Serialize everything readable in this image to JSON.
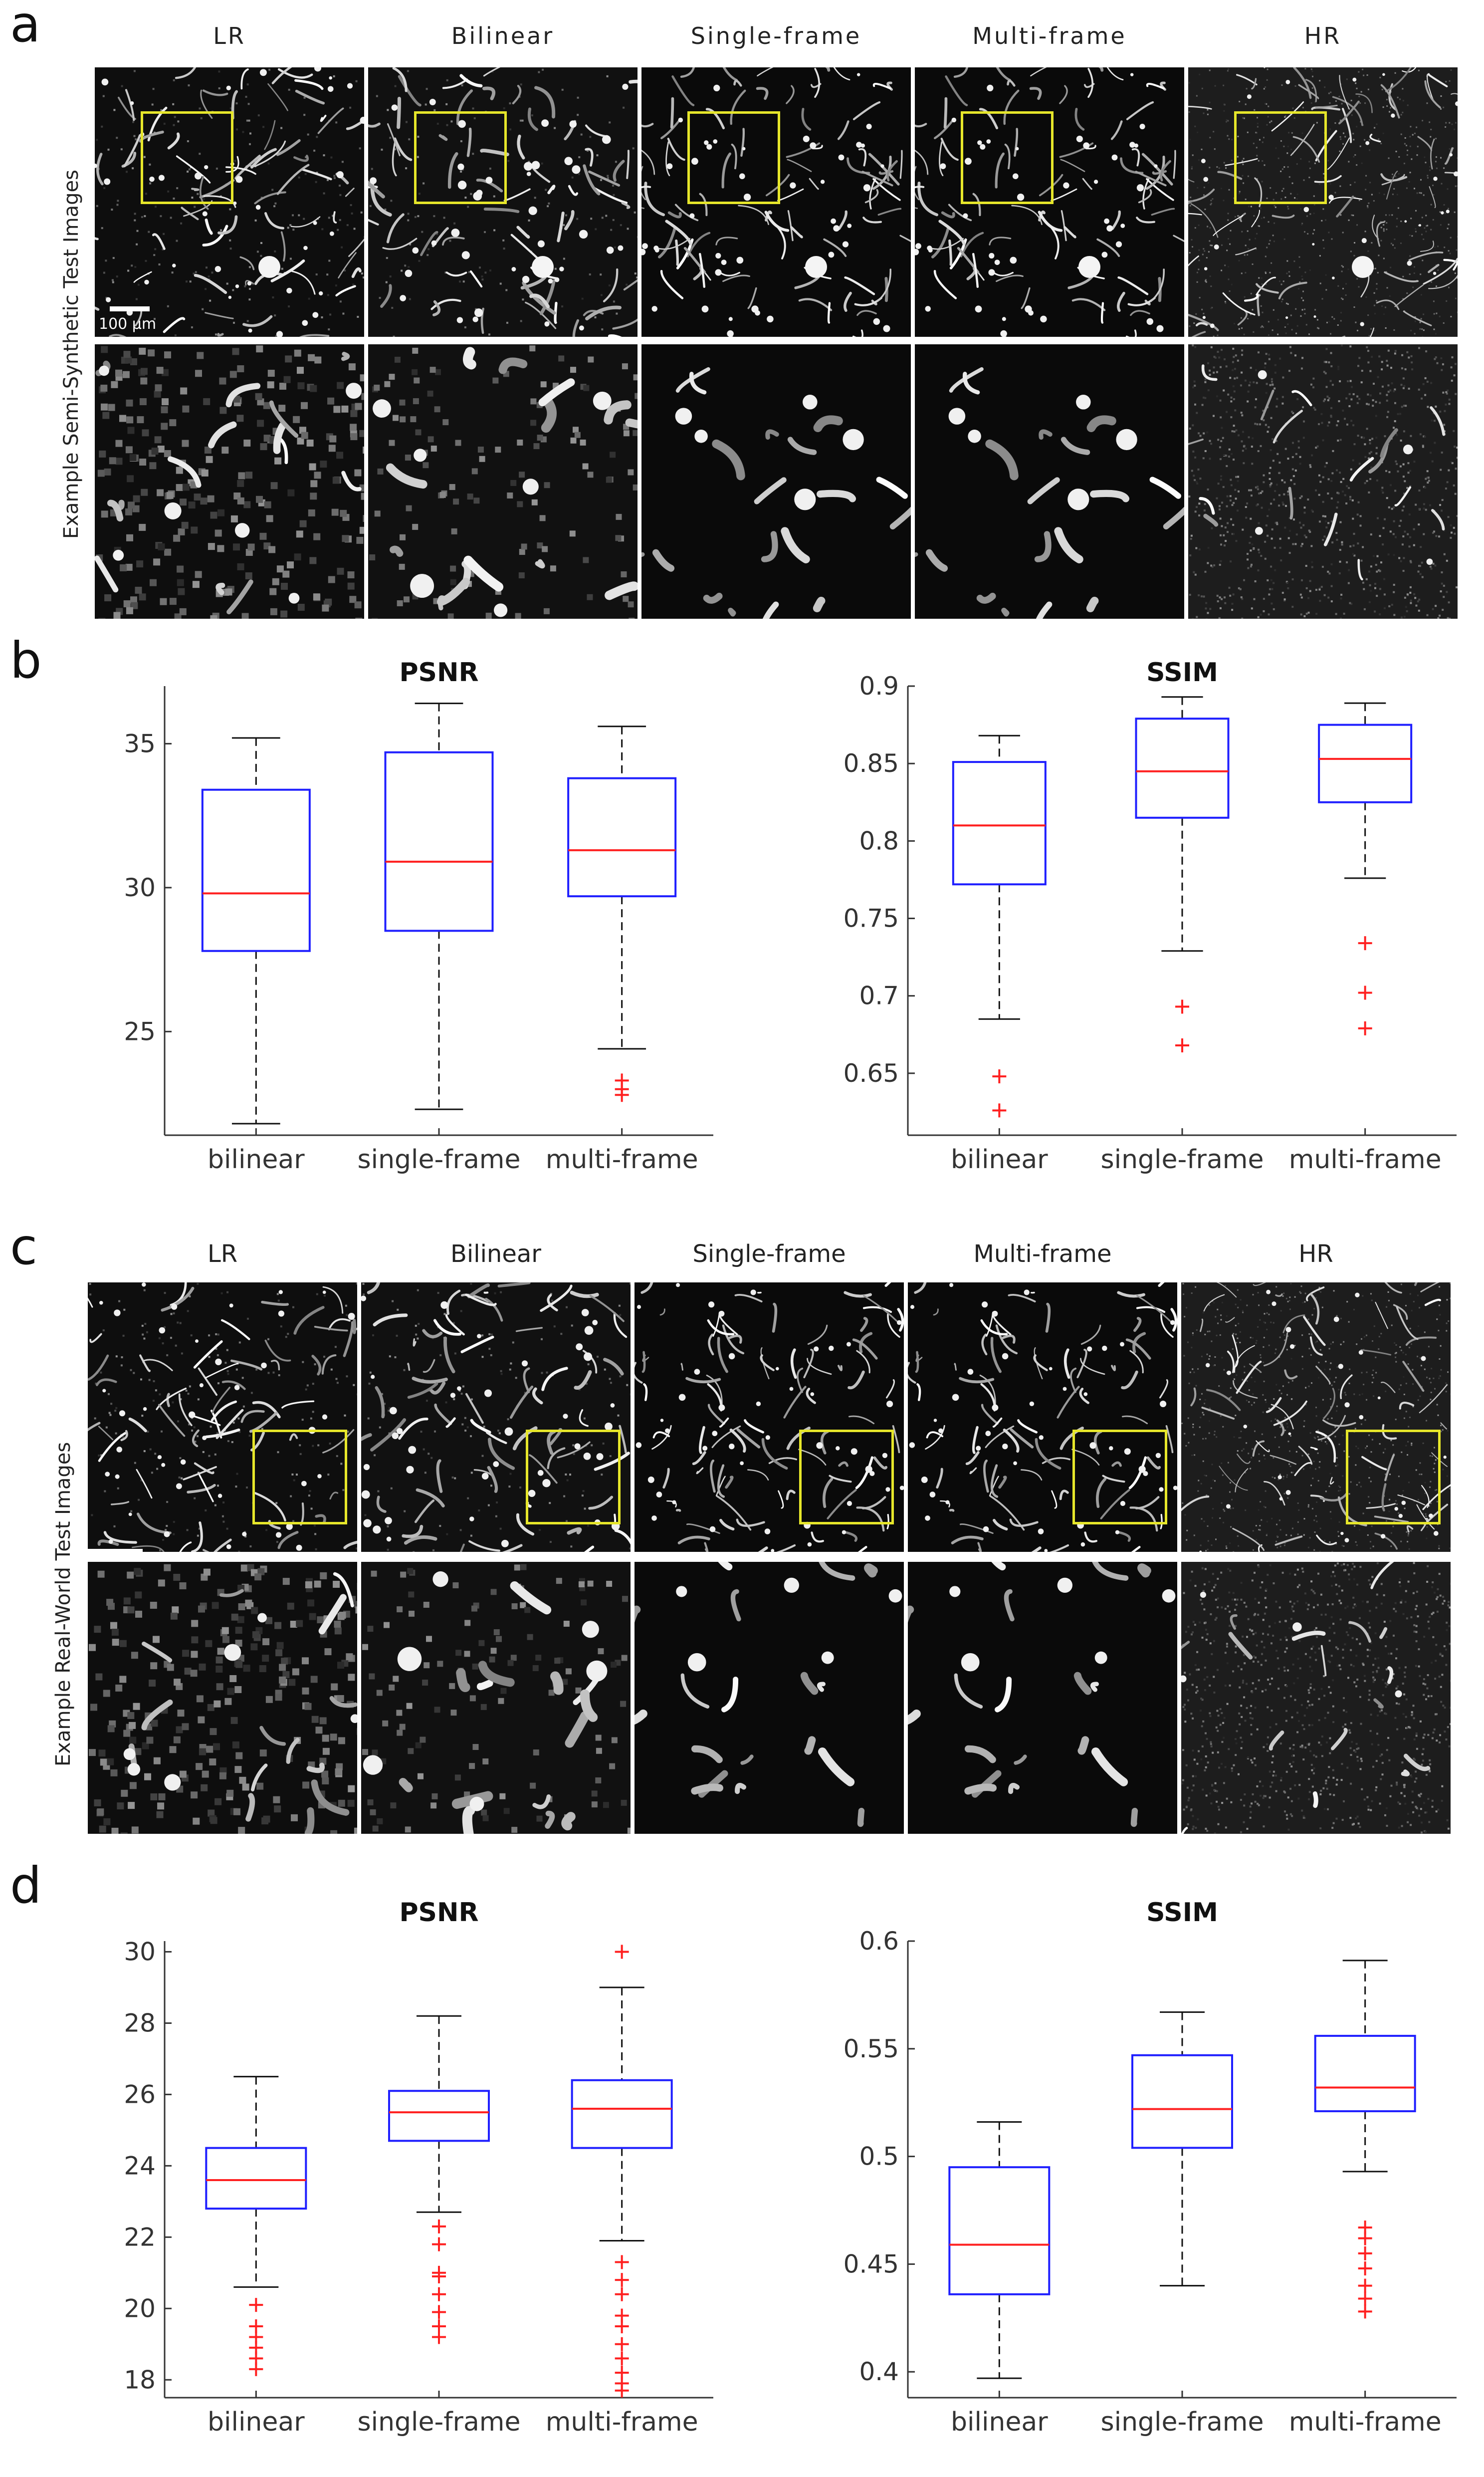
{
  "panels": {
    "a": {
      "letter": "a",
      "row_label": "Example Semi-Synthetic Test Images",
      "columns": [
        "LR",
        "Bilinear",
        "Single-frame",
        "Multi-frame",
        "HR"
      ],
      "scale_label": "100 µm"
    },
    "b": {
      "letter": "b"
    },
    "c": {
      "letter": "c",
      "row_label": "Example Real-World Test Images",
      "columns": [
        "LR",
        "Bilinear",
        "Single-frame",
        "Multi-frame",
        "HR"
      ]
    },
    "d": {
      "letter": "d"
    }
  },
  "colors": {
    "box": "#1f1fff",
    "median": "#ff2020",
    "outlier": "#ff2020",
    "whisker": "#111111",
    "roi": "#e6e62a"
  },
  "chart_data": [
    {
      "id": "b-psnr",
      "type": "box",
      "title": "PSNR",
      "categories": [
        "bilinear",
        "single-frame",
        "multi-frame"
      ],
      "ylim": [
        21.4,
        37.0
      ],
      "yticks": [
        25,
        30,
        35
      ],
      "boxes": [
        {
          "whisker_low": 21.8,
          "q1": 27.8,
          "median": 29.8,
          "q3": 33.4,
          "whisker_high": 35.2,
          "outliers": []
        },
        {
          "whisker_low": 22.3,
          "q1": 28.5,
          "median": 30.9,
          "q3": 34.7,
          "whisker_high": 36.4,
          "outliers": []
        },
        {
          "whisker_low": 24.4,
          "q1": 29.7,
          "median": 31.3,
          "q3": 33.8,
          "whisker_high": 35.6,
          "outliers": [
            23.3,
            23.0,
            22.8
          ]
        }
      ]
    },
    {
      "id": "b-ssim",
      "type": "box",
      "title": "SSIM",
      "categories": [
        "bilinear",
        "single-frame",
        "multi-frame"
      ],
      "ylim": [
        0.61,
        0.9
      ],
      "yticks": [
        0.65,
        0.7,
        0.75,
        0.8,
        0.85,
        0.9
      ],
      "boxes": [
        {
          "whisker_low": 0.685,
          "q1": 0.772,
          "median": 0.81,
          "q3": 0.851,
          "whisker_high": 0.868,
          "outliers": [
            0.648,
            0.626
          ]
        },
        {
          "whisker_low": 0.729,
          "q1": 0.815,
          "median": 0.845,
          "q3": 0.879,
          "whisker_high": 0.893,
          "outliers": [
            0.693,
            0.668
          ]
        },
        {
          "whisker_low": 0.776,
          "q1": 0.825,
          "median": 0.853,
          "q3": 0.875,
          "whisker_high": 0.889,
          "outliers": [
            0.734,
            0.702,
            0.679
          ]
        }
      ]
    },
    {
      "id": "d-psnr",
      "type": "box",
      "title": "PSNR",
      "categories": [
        "bilinear",
        "single-frame",
        "multi-frame"
      ],
      "ylim": [
        17.5,
        30.3
      ],
      "yticks": [
        18,
        20,
        22,
        24,
        26,
        28,
        30
      ],
      "boxes": [
        {
          "whisker_low": 20.6,
          "q1": 22.8,
          "median": 23.6,
          "q3": 24.5,
          "whisker_high": 26.5,
          "outliers": [
            20.1,
            19.5,
            19.2,
            18.9,
            18.6,
            18.3
          ]
        },
        {
          "whisker_low": 22.7,
          "q1": 24.7,
          "median": 25.5,
          "q3": 26.1,
          "whisker_high": 28.2,
          "outliers": [
            22.3,
            21.8,
            21.0,
            20.9,
            20.4,
            19.9,
            19.5,
            19.2
          ]
        },
        {
          "whisker_low": 21.9,
          "q1": 24.5,
          "median": 25.6,
          "q3": 26.4,
          "whisker_high": 29.0,
          "outliers": [
            30.0,
            21.3,
            20.8,
            20.4,
            19.8,
            19.5,
            19.0,
            18.6,
            18.2,
            17.9,
            17.7
          ]
        }
      ]
    },
    {
      "id": "d-ssim",
      "type": "box",
      "title": "SSIM",
      "categories": [
        "bilinear",
        "single-frame",
        "multi-frame"
      ],
      "ylim": [
        0.388,
        0.6
      ],
      "yticks": [
        0.4,
        0.45,
        0.5,
        0.55,
        0.6
      ],
      "boxes": [
        {
          "whisker_low": 0.397,
          "q1": 0.436,
          "median": 0.459,
          "q3": 0.495,
          "whisker_high": 0.516,
          "outliers": []
        },
        {
          "whisker_low": 0.44,
          "q1": 0.504,
          "median": 0.522,
          "q3": 0.547,
          "whisker_high": 0.567,
          "outliers": []
        },
        {
          "whisker_low": 0.493,
          "q1": 0.521,
          "median": 0.532,
          "q3": 0.556,
          "whisker_high": 0.591,
          "outliers": [
            0.467,
            0.462,
            0.455,
            0.448,
            0.44,
            0.434,
            0.428
          ]
        }
      ]
    }
  ]
}
